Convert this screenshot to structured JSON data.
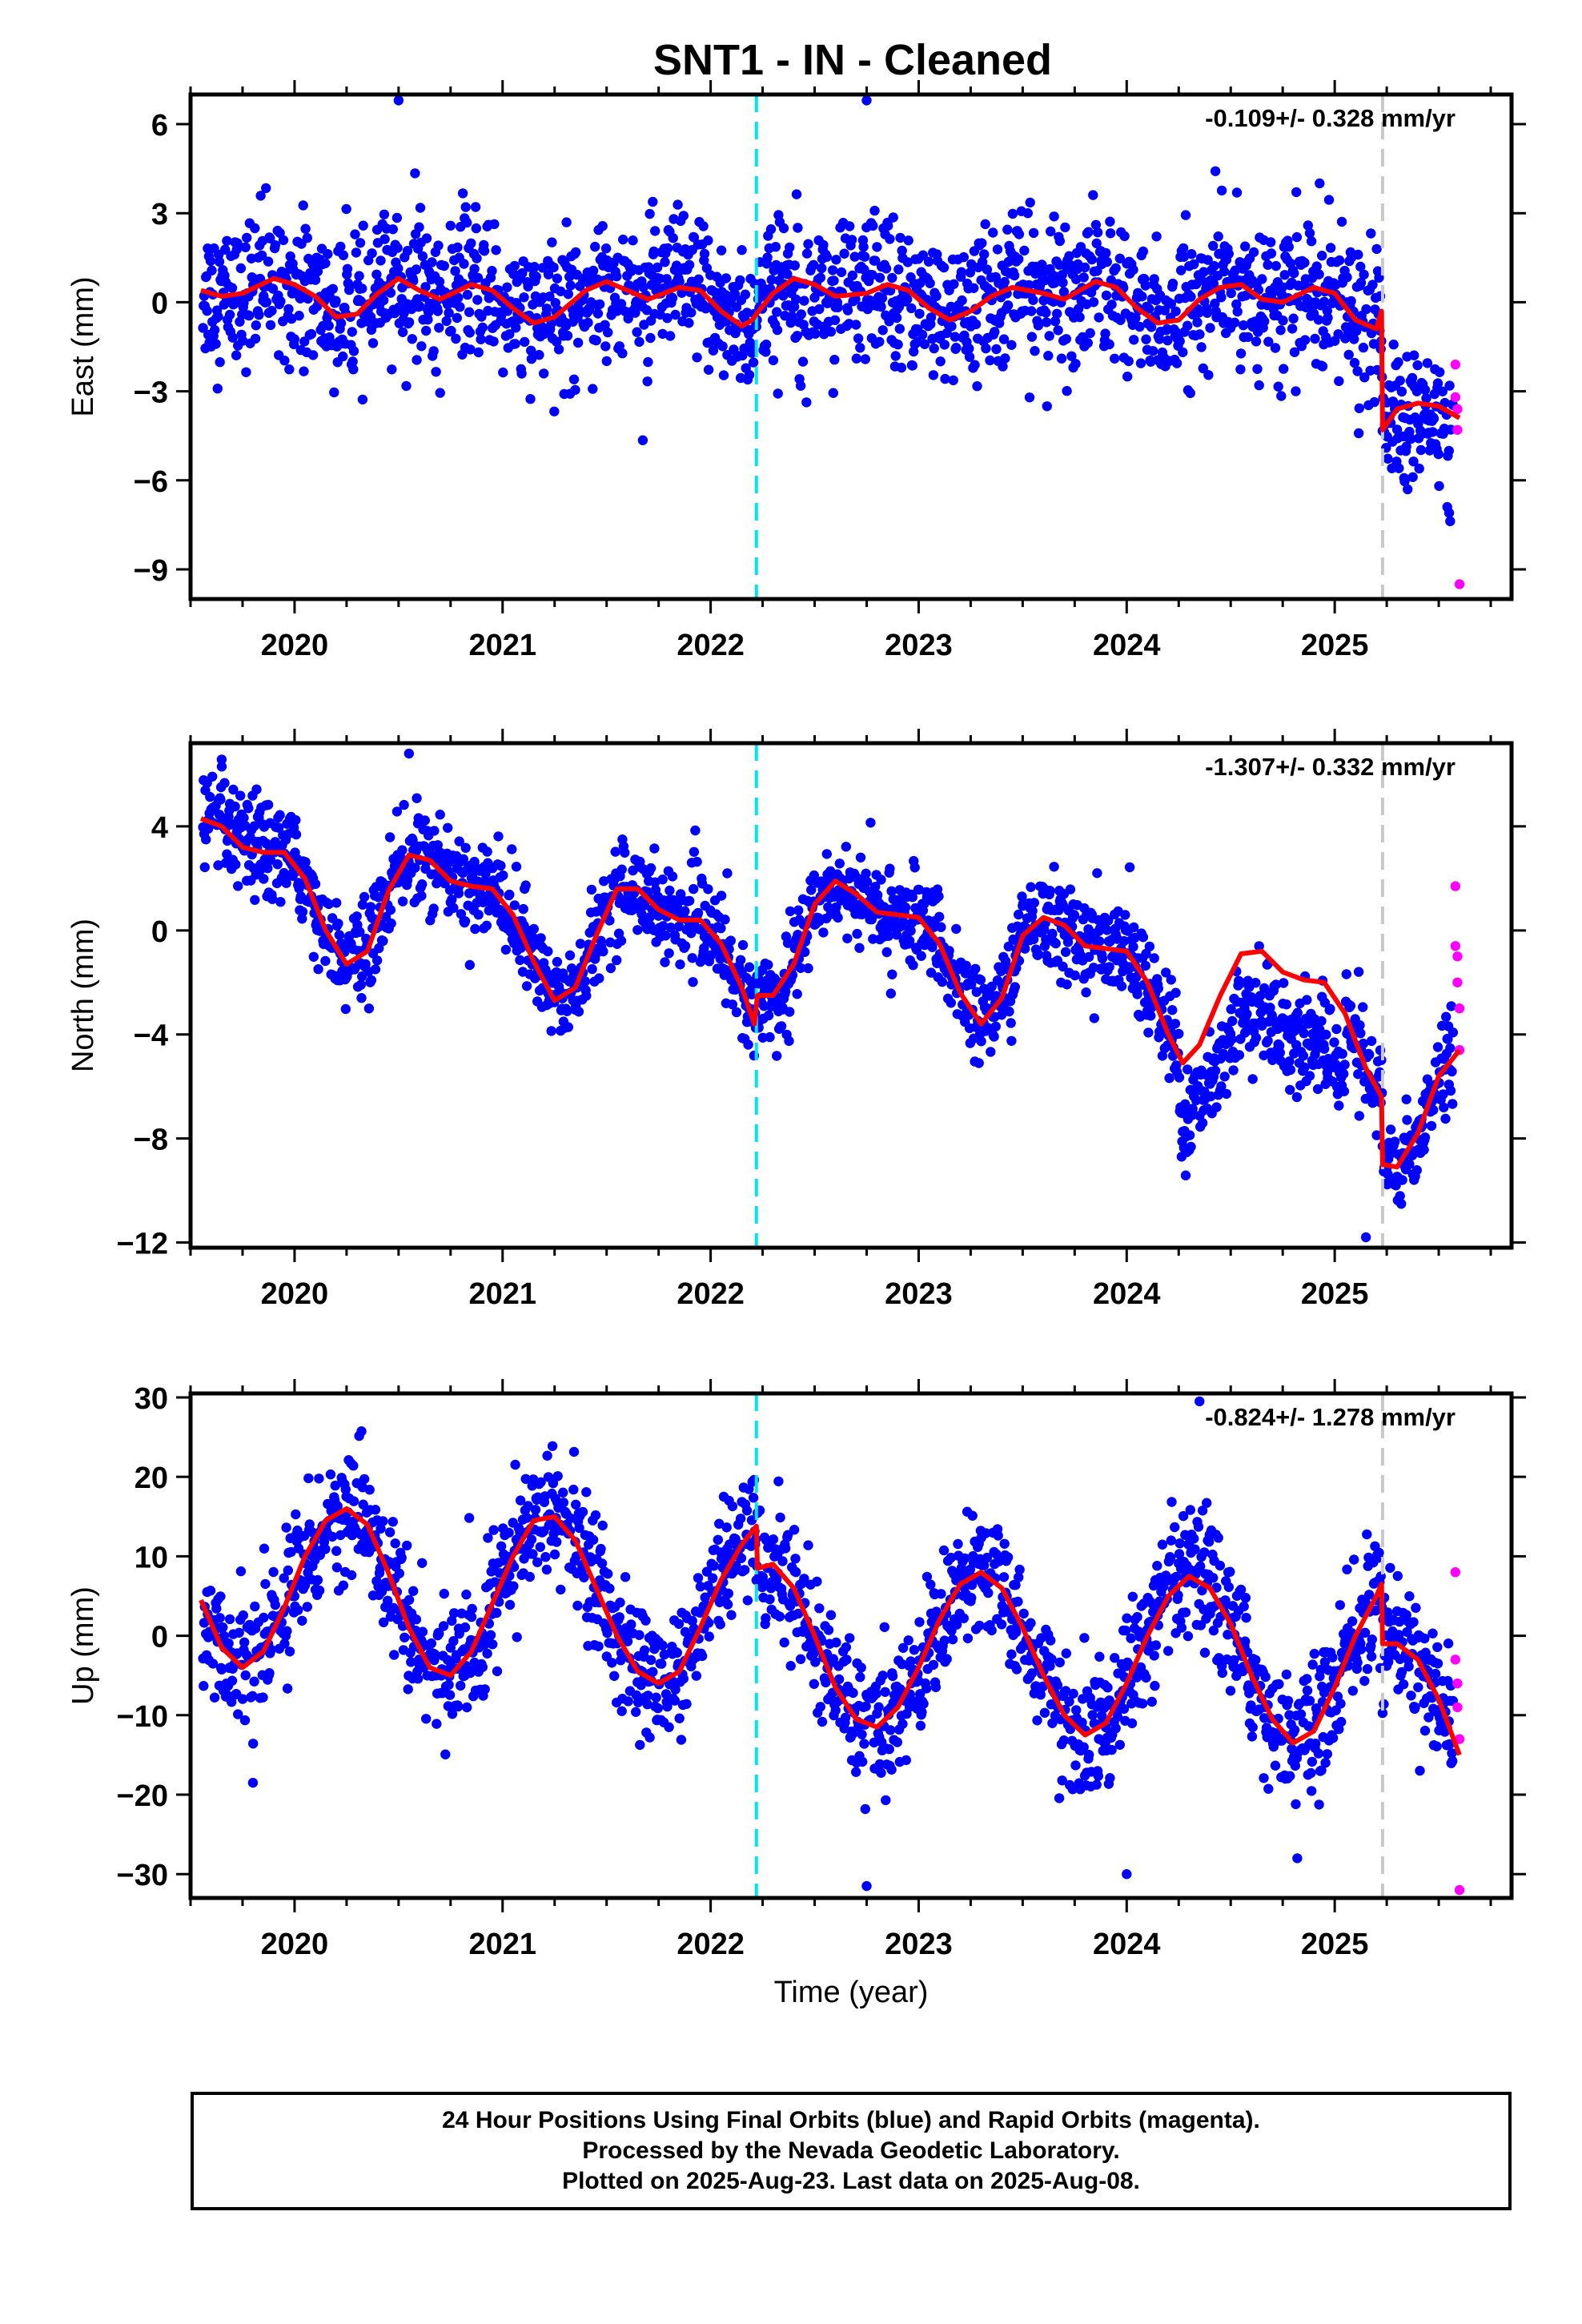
{
  "title": "SNT1  - IN - Cleaned",
  "colors": {
    "final": "#0000ff",
    "rapid": "#ff00ff",
    "model": "#ff0000",
    "cyan": "#00e5ee",
    "gray": "#c8c8c8"
  },
  "x_axis": {
    "label": "Time (year)",
    "ticks": [
      "2020",
      "2021",
      "2022",
      "2023",
      "2024",
      "2025"
    ],
    "range": [
      2019.5,
      2025.85
    ]
  },
  "events": {
    "dashed_cyan": 2022.22,
    "dashed_gray": 2025.23
  },
  "footer": [
    "24 Hour Positions Using Final Orbits (blue) and Rapid Orbits (magenta).",
    "Processed by the Nevada Geodetic Laboratory.",
    "Plotted on 2025-Aug-23. Last data on 2025-Aug-08."
  ],
  "chart_data": [
    {
      "type": "scatter",
      "name": "east",
      "ylabel": "East (mm)",
      "rate": "-0.109+/- 0.328 mm/yr",
      "ylim": [
        -10,
        7
      ],
      "yticks": [
        6,
        3,
        0,
        -3,
        -6,
        -9
      ],
      "ytick_labels": [
        "6",
        "3",
        "0",
        "−3",
        "−6",
        "−9"
      ],
      "model": [
        [
          2019.55,
          0.4
        ],
        [
          2019.65,
          0.2
        ],
        [
          2019.75,
          0.3
        ],
        [
          2019.9,
          0.8
        ],
        [
          2020.0,
          0.6
        ],
        [
          2020.1,
          0.2
        ],
        [
          2020.2,
          -0.5
        ],
        [
          2020.3,
          -0.4
        ],
        [
          2020.4,
          0.3
        ],
        [
          2020.5,
          0.8
        ],
        [
          2020.6,
          0.4
        ],
        [
          2020.7,
          0.1
        ],
        [
          2020.85,
          0.6
        ],
        [
          2020.95,
          0.4
        ],
        [
          2021.05,
          -0.2
        ],
        [
          2021.15,
          -0.7
        ],
        [
          2021.25,
          -0.5
        ],
        [
          2021.4,
          0.4
        ],
        [
          2021.5,
          0.7
        ],
        [
          2021.6,
          0.4
        ],
        [
          2021.7,
          0.1
        ],
        [
          2021.85,
          0.5
        ],
        [
          2021.95,
          0.4
        ],
        [
          2022.05,
          -0.3
        ],
        [
          2022.15,
          -0.8
        ],
        [
          2022.2,
          -0.6
        ],
        [
          2022.23,
          -0.3
        ],
        [
          2022.3,
          0.3
        ],
        [
          2022.4,
          0.8
        ],
        [
          2022.5,
          0.6
        ],
        [
          2022.6,
          0.2
        ],
        [
          2022.75,
          0.3
        ],
        [
          2022.85,
          0.6
        ],
        [
          2022.95,
          0.4
        ],
        [
          2023.05,
          -0.2
        ],
        [
          2023.15,
          -0.6
        ],
        [
          2023.25,
          -0.3
        ],
        [
          2023.35,
          0.2
        ],
        [
          2023.45,
          0.5
        ],
        [
          2023.6,
          0.3
        ],
        [
          2023.7,
          0.1
        ],
        [
          2023.85,
          0.7
        ],
        [
          2023.95,
          0.5
        ],
        [
          2024.05,
          -0.2
        ],
        [
          2024.15,
          -0.7
        ],
        [
          2024.25,
          -0.6
        ],
        [
          2024.35,
          0.1
        ],
        [
          2024.45,
          0.5
        ],
        [
          2024.55,
          0.6
        ],
        [
          2024.65,
          0.1
        ],
        [
          2024.75,
          0.0
        ],
        [
          2024.9,
          0.5
        ],
        [
          2025.0,
          0.3
        ],
        [
          2025.1,
          -0.6
        ],
        [
          2025.2,
          -0.9
        ],
        [
          2025.225,
          -0.3
        ],
        [
          2025.23,
          -4.3
        ],
        [
          2025.3,
          -3.6
        ],
        [
          2025.4,
          -3.4
        ],
        [
          2025.5,
          -3.5
        ],
        [
          2025.6,
          -3.9
        ]
      ],
      "rapid": [
        [
          2025.58,
          -2.1
        ],
        [
          2025.58,
          -3.2
        ],
        [
          2025.59,
          -3.6
        ],
        [
          2025.59,
          -4.3
        ],
        [
          2025.6,
          -9.5
        ]
      ],
      "extra": [
        [
          2020.5,
          6.8
        ],
        [
          2022.75,
          6.8
        ],
        [
          2025.55,
          -7.1
        ]
      ],
      "sigma": 1.2
    },
    {
      "type": "scatter",
      "name": "north",
      "ylabel": "North (mm)",
      "rate": "-1.307+/- 0.332 mm/yr",
      "ylim": [
        -12.2,
        7.2
      ],
      "yticks": [
        4,
        0,
        -4,
        -8,
        -12
      ],
      "ytick_labels": [
        "4",
        "0",
        "−4",
        "−8",
        "−12"
      ],
      "model": [
        [
          2019.55,
          4.3
        ],
        [
          2019.65,
          4.0
        ],
        [
          2019.75,
          3.2
        ],
        [
          2019.85,
          3.0
        ],
        [
          2019.95,
          3.0
        ],
        [
          2020.05,
          2.0
        ],
        [
          2020.15,
          0.0
        ],
        [
          2020.25,
          -1.3
        ],
        [
          2020.35,
          -0.8
        ],
        [
          2020.45,
          1.5
        ],
        [
          2020.55,
          2.9
        ],
        [
          2020.65,
          2.7
        ],
        [
          2020.75,
          1.9
        ],
        [
          2020.85,
          1.7
        ],
        [
          2020.95,
          1.6
        ],
        [
          2021.05,
          0.6
        ],
        [
          2021.15,
          -1.2
        ],
        [
          2021.25,
          -2.7
        ],
        [
          2021.35,
          -2.2
        ],
        [
          2021.45,
          -0.2
        ],
        [
          2021.55,
          1.6
        ],
        [
          2021.65,
          1.6
        ],
        [
          2021.75,
          0.8
        ],
        [
          2021.85,
          0.4
        ],
        [
          2021.95,
          0.4
        ],
        [
          2022.05,
          -0.5
        ],
        [
          2022.15,
          -2.2
        ],
        [
          2022.21,
          -3.6
        ],
        [
          2022.225,
          -2.5
        ],
        [
          2022.3,
          -2.5
        ],
        [
          2022.4,
          -1.3
        ],
        [
          2022.5,
          1.0
        ],
        [
          2022.6,
          1.9
        ],
        [
          2022.7,
          1.4
        ],
        [
          2022.8,
          0.7
        ],
        [
          2022.9,
          0.6
        ],
        [
          2023.0,
          0.5
        ],
        [
          2023.1,
          -0.5
        ],
        [
          2023.2,
          -2.4
        ],
        [
          2023.3,
          -3.6
        ],
        [
          2023.4,
          -2.6
        ],
        [
          2023.5,
          -0.2
        ],
        [
          2023.6,
          0.5
        ],
        [
          2023.7,
          0.2
        ],
        [
          2023.8,
          -0.6
        ],
        [
          2023.9,
          -0.7
        ],
        [
          2024.0,
          -0.8
        ],
        [
          2024.1,
          -2.0
        ],
        [
          2024.2,
          -4.0
        ],
        [
          2024.27,
          -5.1
        ],
        [
          2024.35,
          -4.4
        ],
        [
          2024.45,
          -2.5
        ],
        [
          2024.55,
          -0.9
        ],
        [
          2024.65,
          -0.8
        ],
        [
          2024.75,
          -1.6
        ],
        [
          2024.85,
          -1.9
        ],
        [
          2024.95,
          -2.0
        ],
        [
          2025.05,
          -3.2
        ],
        [
          2025.15,
          -5.3
        ],
        [
          2025.225,
          -6.4
        ],
        [
          2025.23,
          -9.0
        ],
        [
          2025.3,
          -9.1
        ],
        [
          2025.4,
          -7.8
        ],
        [
          2025.5,
          -5.6
        ],
        [
          2025.6,
          -4.6
        ]
      ],
      "rapid": [
        [
          2025.58,
          1.7
        ],
        [
          2025.58,
          -0.6
        ],
        [
          2025.59,
          -1.0
        ],
        [
          2025.59,
          -2.0
        ],
        [
          2025.6,
          -3.0
        ],
        [
          2025.6,
          -4.6
        ]
      ],
      "extra": [
        [
          2020.55,
          6.8
        ],
        [
          2025.15,
          -11.8
        ],
        [
          2019.65,
          6.3
        ]
      ],
      "sigma": 0.9
    },
    {
      "type": "scatter",
      "name": "up",
      "ylabel": "Up (mm)",
      "rate": "-0.824+/- 1.278 mm/yr",
      "ylim": [
        -33,
        30.5
      ],
      "yticks": [
        30,
        20,
        10,
        0,
        -10,
        -20,
        -30
      ],
      "ytick_labels": [
        "30",
        "20",
        "10",
        "0",
        "−10",
        "−20",
        "−30"
      ],
      "model": [
        [
          2019.55,
          4.5
        ],
        [
          2019.65,
          -1.5
        ],
        [
          2019.75,
          -4.0
        ],
        [
          2019.85,
          -2.0
        ],
        [
          2019.95,
          3.5
        ],
        [
          2020.05,
          10.0
        ],
        [
          2020.15,
          14.5
        ],
        [
          2020.25,
          16.0
        ],
        [
          2020.35,
          14.0
        ],
        [
          2020.45,
          8.0
        ],
        [
          2020.55,
          1.0
        ],
        [
          2020.65,
          -4.0
        ],
        [
          2020.75,
          -5.0
        ],
        [
          2020.85,
          -2.0
        ],
        [
          2020.95,
          4.0
        ],
        [
          2021.05,
          10.0
        ],
        [
          2021.15,
          14.5
        ],
        [
          2021.25,
          15.0
        ],
        [
          2021.35,
          12.0
        ],
        [
          2021.45,
          6.0
        ],
        [
          2021.55,
          0.0
        ],
        [
          2021.65,
          -4.5
        ],
        [
          2021.75,
          -6.0
        ],
        [
          2021.85,
          -4.5
        ],
        [
          2021.95,
          1.0
        ],
        [
          2022.05,
          7.0
        ],
        [
          2022.15,
          11.5
        ],
        [
          2022.22,
          13.8
        ],
        [
          2022.225,
          8.5
        ],
        [
          2022.3,
          9.0
        ],
        [
          2022.4,
          6.0
        ],
        [
          2022.5,
          0.0
        ],
        [
          2022.6,
          -6.5
        ],
        [
          2022.7,
          -10.5
        ],
        [
          2022.8,
          -11.5
        ],
        [
          2022.9,
          -9.0
        ],
        [
          2023.0,
          -4.0
        ],
        [
          2023.1,
          2.0
        ],
        [
          2023.2,
          6.5
        ],
        [
          2023.3,
          8.0
        ],
        [
          2023.4,
          6.0
        ],
        [
          2023.5,
          1.0
        ],
        [
          2023.6,
          -5.0
        ],
        [
          2023.7,
          -10.0
        ],
        [
          2023.8,
          -12.5
        ],
        [
          2023.9,
          -11.0
        ],
        [
          2024.0,
          -6.0
        ],
        [
          2024.1,
          0.0
        ],
        [
          2024.2,
          5.0
        ],
        [
          2024.3,
          7.5
        ],
        [
          2024.4,
          6.0
        ],
        [
          2024.5,
          1.5
        ],
        [
          2024.6,
          -5.0
        ],
        [
          2024.7,
          -10.5
        ],
        [
          2024.8,
          -13.5
        ],
        [
          2024.9,
          -12.0
        ],
        [
          2025.0,
          -6.5
        ],
        [
          2025.1,
          0.0
        ],
        [
          2025.2,
          5.0
        ],
        [
          2025.225,
          6.5
        ],
        [
          2025.23,
          -1.0
        ],
        [
          2025.3,
          -1.0
        ],
        [
          2025.4,
          -3.0
        ],
        [
          2025.5,
          -8.0
        ],
        [
          2025.6,
          -15.0
        ]
      ],
      "rapid": [
        [
          2025.58,
          8.0
        ],
        [
          2025.58,
          -3.0
        ],
        [
          2025.59,
          -6.0
        ],
        [
          2025.59,
          -9.0
        ],
        [
          2025.6,
          -13.0
        ],
        [
          2025.6,
          -32.0
        ]
      ],
      "extra": [
        [
          2019.8,
          -18.5
        ],
        [
          2022.75,
          -31.5
        ],
        [
          2024.35,
          29.5
        ],
        [
          2024.0,
          -30.0
        ],
        [
          2024.82,
          -28.0
        ]
      ],
      "sigma": 4.0
    }
  ]
}
